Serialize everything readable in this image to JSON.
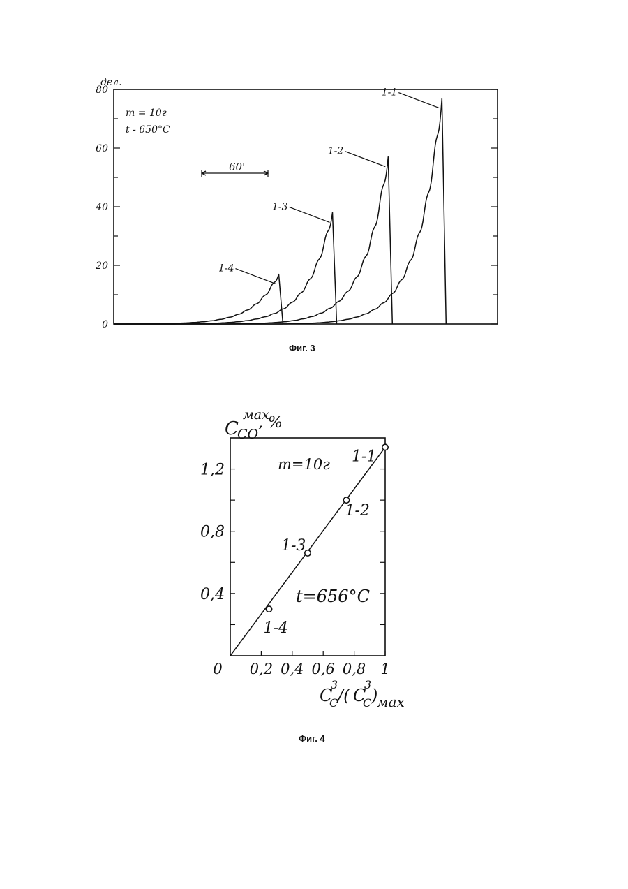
{
  "chart_data": [
    {
      "type": "line",
      "caption": "Фиг. 3",
      "ylabel": "дел.",
      "ylim": [
        0,
        80
      ],
      "yticks": [
        "0",
        "20",
        "40",
        "60",
        "80"
      ],
      "annotations": [
        "m = 10г",
        "t - 650°C"
      ],
      "scale_bar": "60'",
      "series": [
        {
          "name": "1-4",
          "peak": 17,
          "drop_x": 0.43
        },
        {
          "name": "1-3",
          "peak": 38,
          "drop_x": 0.57
        },
        {
          "name": "1-2",
          "peak": 57,
          "drop_x": 0.715
        },
        {
          "name": "1-1",
          "peak": 77,
          "drop_x": 0.855
        }
      ],
      "grid": false
    },
    {
      "type": "scatter",
      "caption": "Фиг. 4",
      "ylabel_main": "C",
      "ylabel_sup": "мах",
      "ylabel_sub": "CO",
      "ylabel_unit": ", %",
      "xlabel_a": "C",
      "xlabel_a_sup": "3",
      "xlabel_a_sub": "C",
      "xlabel_sep": "/(",
      "xlabel_b": "C",
      "xlabel_b_sup": "3",
      "xlabel_b_sub": "C",
      "xlabel_close": ")",
      "xlabel_b_tail": "мах",
      "xlim": [
        0,
        1
      ],
      "ylim": [
        0,
        1.4
      ],
      "xticks": [
        "0",
        "0,2",
        "0,4",
        "0,6",
        "0,8",
        "1"
      ],
      "yticks": [
        "0,4",
        "0,8",
        "1,2"
      ],
      "annotations": [
        "m=10г",
        "t=656°C"
      ],
      "points": [
        {
          "label": "1-4",
          "x": 0.25,
          "y": 0.3
        },
        {
          "label": "1-3",
          "x": 0.5,
          "y": 0.66
        },
        {
          "label": "1-2",
          "x": 0.75,
          "y": 1.0
        },
        {
          "label": "1-1",
          "x": 1.0,
          "y": 1.34
        }
      ],
      "fit_line": {
        "x": [
          0,
          1
        ],
        "y": [
          0,
          1.34
        ]
      },
      "grid": false
    }
  ]
}
